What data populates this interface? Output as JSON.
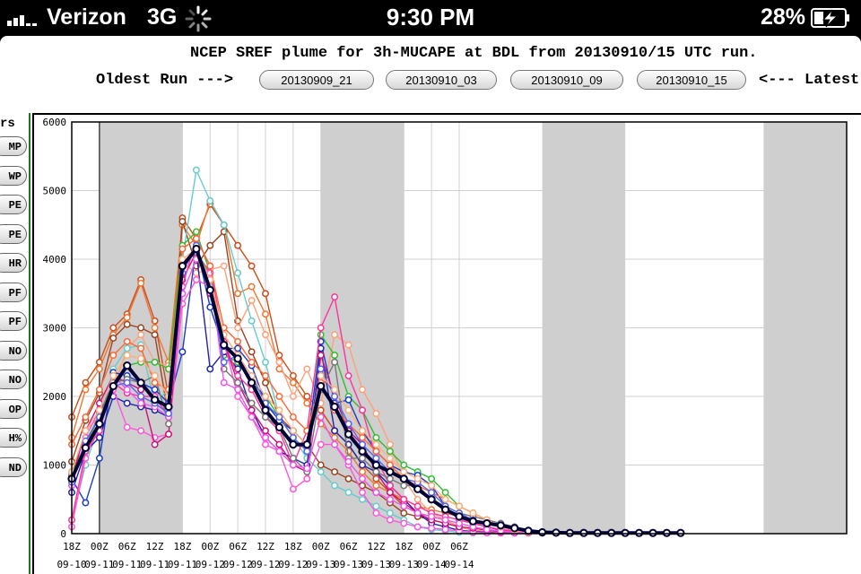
{
  "status_bar": {
    "carrier": "Verizon",
    "network": "3G",
    "time": "9:30 PM",
    "battery": "28%"
  },
  "header": {
    "title": "NCEP SREF plume for 3h-MUCAPE at BDL from 20130910/15 UTC run.",
    "oldest_label": "Oldest Run --->",
    "latest_label": "<--- Latest",
    "runs": [
      "20130909_21",
      "20130910_03",
      "20130910_09",
      "20130910_15"
    ]
  },
  "sidebar": {
    "header": "rs",
    "buttons": [
      "MP",
      "WP",
      "PE",
      "PE",
      "HR",
      "PF",
      "PF",
      "NO",
      "NO",
      "OP",
      "H%",
      "ND"
    ]
  },
  "chart_data": {
    "type": "line",
    "title": "NCEP SREF plume for 3h-MUCAPE at BDL from 20130910/15 UTC run.",
    "xlabel": "",
    "ylabel": "",
    "ylim": [
      0,
      6000
    ],
    "yticks": [
      0,
      1000,
      2000,
      3000,
      4000,
      5000,
      6000
    ],
    "x_tick_labels": [
      {
        "hour": "18Z",
        "date": "09-10"
      },
      {
        "hour": "00Z",
        "date": "09-11"
      },
      {
        "hour": "06Z",
        "date": "09-11"
      },
      {
        "hour": "12Z",
        "date": "09-11"
      },
      {
        "hour": "18Z",
        "date": "09-11"
      },
      {
        "hour": "00Z",
        "date": "09-12"
      },
      {
        "hour": "06Z",
        "date": "09-12"
      },
      {
        "hour": "12Z",
        "date": "09-12"
      },
      {
        "hour": "18Z",
        "date": "09-12"
      },
      {
        "hour": "00Z",
        "date": "09-13"
      },
      {
        "hour": "06Z",
        "date": "09-13"
      },
      {
        "hour": "12Z",
        "date": "09-13"
      },
      {
        "hour": "18Z",
        "date": "09-13"
      },
      {
        "hour": "00Z",
        "date": "09-14"
      },
      {
        "hour": "06Z",
        "date": "09-14"
      }
    ],
    "x_hours": [
      18,
      21,
      24,
      27,
      30,
      33,
      36,
      39,
      42,
      45,
      48,
      51,
      54,
      57,
      60,
      63,
      66,
      69,
      72,
      75,
      78,
      81,
      84,
      87,
      90,
      93,
      96,
      99,
      102,
      105,
      108,
      111,
      114,
      117,
      120,
      123,
      126,
      129,
      132,
      135,
      138,
      141,
      144,
      147,
      150
    ],
    "night_shading_hours": [
      [
        24,
        42
      ],
      [
        72,
        90
      ],
      [
        120,
        138
      ],
      [
        168,
        186
      ]
    ],
    "current_run_marker_hour": 24,
    "grid": true,
    "mean_color": "#000033",
    "series": [
      {
        "color": "#cc4d1a",
        "values": [
          1700,
          2200,
          2500,
          3000,
          3200,
          3700,
          3100,
          2000,
          4600,
          4300,
          4800,
          4500,
          4200,
          3900,
          3500,
          2600,
          2300,
          2000,
          1800,
          1500,
          1300,
          1000,
          800,
          600,
          400,
          300,
          250,
          200,
          100,
          50,
          30,
          20,
          10,
          10,
          10,
          10,
          10,
          10,
          10,
          10,
          10,
          10,
          10,
          10,
          10
        ]
      },
      {
        "color": "#ee7733",
        "values": [
          1400,
          2100,
          2400,
          2900,
          3150,
          3650,
          3000,
          2500,
          4500,
          4200,
          4850,
          4500,
          3500,
          3600,
          3200,
          2400,
          2200,
          1900,
          1600,
          1400,
          1200,
          900,
          700,
          600,
          500,
          400,
          350,
          300,
          250,
          150,
          100,
          60,
          40,
          20,
          10,
          10,
          10,
          10,
          10,
          10,
          10,
          10,
          10,
          10,
          10
        ]
      },
      {
        "color": "#9a4420",
        "values": [
          1050,
          1650,
          2050,
          2850,
          3050,
          3000,
          2900,
          1700,
          4550,
          3900,
          4200,
          4400,
          3100,
          2650,
          2200,
          1700,
          1500,
          1300,
          1000,
          900,
          800,
          700,
          600,
          450,
          300,
          250,
          200,
          150,
          100,
          50,
          30,
          20,
          10,
          10,
          10,
          10,
          10,
          10,
          10,
          10,
          10,
          10,
          10,
          10,
          10
        ]
      },
      {
        "color": "#ffa07a",
        "values": [
          850,
          1500,
          1700,
          2100,
          2700,
          2900,
          2500,
          2450,
          3950,
          3800,
          3850,
          3900,
          3000,
          3400,
          2900,
          2500,
          2000,
          2400,
          1900,
          2900,
          2750,
          2100,
          1750,
          1300,
          800,
          500,
          300,
          200,
          100,
          50,
          30,
          20,
          10,
          10,
          10,
          10,
          10,
          10,
          10,
          10,
          10,
          10,
          10,
          10,
          10
        ]
      },
      {
        "color": "#66cccc",
        "values": [
          200,
          1000,
          1600,
          2400,
          2700,
          2750,
          1900,
          2100,
          4000,
          5300,
          4850,
          4500,
          3800,
          3100,
          2500,
          1700,
          1400,
          1100,
          900,
          700,
          600,
          500,
          400,
          300,
          200,
          100,
          60,
          40,
          20,
          10,
          10,
          10,
          10,
          10,
          10,
          10,
          10,
          10,
          10,
          10,
          10,
          10,
          10,
          10,
          10
        ]
      },
      {
        "color": "#33bb33",
        "values": [
          900,
          1300,
          1700,
          2200,
          2450,
          2500,
          2500,
          2400,
          4200,
          4400,
          3800,
          2600,
          2500,
          2200,
          2000,
          1700,
          1400,
          1200,
          2900,
          2600,
          2000,
          1800,
          1400,
          1200,
          1000,
          900,
          800,
          600,
          400,
          300,
          200,
          100,
          50,
          20,
          10,
          10,
          10,
          10,
          10,
          10,
          10,
          10,
          10,
          10,
          10
        ]
      },
      {
        "color": "#1a3ccc",
        "values": [
          800,
          450,
          1100,
          2350,
          2300,
          2200,
          2100,
          1900,
          2650,
          4200,
          3300,
          2700,
          2700,
          2450,
          1900,
          1650,
          1500,
          1300,
          2800,
          1900,
          1950,
          1500,
          1200,
          1000,
          900,
          850,
          700,
          400,
          200,
          150,
          100,
          50,
          20,
          10,
          10,
          10,
          10,
          10,
          10,
          10,
          10,
          10,
          10,
          10,
          10
        ]
      },
      {
        "color": "#2222aa",
        "values": [
          600,
          1200,
          1400,
          2000,
          1900,
          1850,
          1800,
          1700,
          3900,
          4100,
          2400,
          2650,
          2400,
          1800,
          1400,
          1200,
          1100,
          1000,
          2700,
          1500,
          1300,
          1000,
          900,
          700,
          500,
          300,
          150,
          100,
          50,
          30,
          20,
          10,
          10,
          10,
          10,
          10,
          10,
          10,
          10,
          10,
          10,
          10,
          10,
          10,
          10
        ]
      },
      {
        "color": "#ff55dd",
        "values": [
          100,
          1100,
          1600,
          2100,
          1550,
          1500,
          1400,
          1450,
          3350,
          3700,
          3600,
          2800,
          2000,
          1700,
          1300,
          1200,
          650,
          800,
          1300,
          1300,
          1000,
          600,
          300,
          200,
          150,
          100,
          80,
          60,
          40,
          20,
          10,
          10,
          10,
          10,
          10,
          10,
          10,
          10,
          10,
          10,
          10,
          10,
          10,
          10,
          10
        ]
      },
      {
        "color": "#cc1177",
        "values": [
          800,
          1500,
          1900,
          2300,
          2200,
          2100,
          1300,
          1450,
          3700,
          4100,
          3500,
          2800,
          2200,
          1800,
          1500,
          1300,
          1000,
          900,
          2600,
          2000,
          1500,
          1300,
          900,
          600,
          450,
          300,
          200,
          150,
          100,
          80,
          50,
          30,
          20,
          10,
          10,
          10,
          10,
          10,
          10,
          10,
          10,
          10,
          10,
          10,
          10
        ]
      },
      {
        "color": "#ff3399",
        "values": [
          200,
          1200,
          1500,
          2200,
          2050,
          2000,
          2000,
          1700,
          3600,
          4300,
          3900,
          2800,
          2300,
          2100,
          1700,
          1500,
          1000,
          1500,
          3000,
          3450,
          2300,
          1800,
          1100,
          700,
          500,
          400,
          300,
          250,
          200,
          150,
          100,
          60,
          40,
          20,
          10,
          10,
          10,
          10,
          10,
          10,
          10,
          10,
          10,
          10,
          10
        ]
      },
      {
        "color": "#777777",
        "values": [
          850,
          1300,
          1750,
          2200,
          2250,
          2200,
          2300,
          1600,
          3900,
          4100,
          3800,
          2400,
          2200,
          1900,
          1700,
          1550,
          1100,
          900,
          2100,
          2500,
          1100,
          1100,
          900,
          800,
          700,
          700,
          500,
          400,
          300,
          250,
          200,
          150,
          100,
          50,
          20,
          10,
          10,
          10,
          10,
          10,
          10,
          10,
          10,
          10,
          10
        ]
      },
      {
        "color": "#ee55ee",
        "values": [
          700,
          1400,
          1800,
          2300,
          2100,
          1900,
          1850,
          1700,
          3500,
          4000,
          3800,
          2200,
          2100,
          1700,
          1400,
          1200,
          1000,
          950,
          1700,
          1300,
          1050,
          800,
          600,
          500,
          400,
          300,
          250,
          200,
          150,
          100,
          60,
          40,
          20,
          10,
          10,
          10,
          10,
          10,
          10,
          10,
          10,
          10,
          10,
          10,
          10
        ]
      },
      {
        "color": "#ff6633",
        "values": [
          1300,
          1700,
          2100,
          2600,
          2800,
          2700,
          2200,
          2100,
          4150,
          4300,
          3900,
          3000,
          2800,
          2500,
          2300,
          2000,
          1700,
          1500,
          2200,
          1800,
          1600,
          1400,
          1200,
          1000,
          800,
          700,
          600,
          500,
          400,
          300,
          200,
          100,
          50,
          20,
          10,
          10,
          10,
          10,
          10,
          10,
          10,
          10,
          10,
          10,
          10
        ]
      },
      {
        "color": "#5566ee",
        "values": [
          750,
          1350,
          1700,
          2150,
          2200,
          2000,
          1900,
          1750,
          3800,
          4200,
          3600,
          2500,
          2600,
          2300,
          1900,
          1700,
          1400,
          1200,
          2400,
          2000,
          1600,
          1300,
          1100,
          900,
          800,
          750,
          600,
          400,
          300,
          200,
          150,
          100,
          50,
          20,
          10,
          10,
          10,
          10,
          10,
          10,
          10,
          10,
          10,
          10,
          10
        ]
      },
      {
        "color": "#ffb07a",
        "values": [
          900,
          1500,
          1800,
          2300,
          2600,
          2550,
          2300,
          2000,
          4000,
          4150,
          3700,
          2900,
          2600,
          2300,
          2000,
          1800,
          1500,
          1300,
          2300,
          2100,
          1800,
          1500,
          1300,
          1100,
          900,
          800,
          700,
          500,
          400,
          300,
          200,
          100,
          50,
          20,
          10,
          10,
          10,
          10,
          10,
          10,
          10,
          10,
          10,
          10,
          10
        ]
      },
      {
        "color": "#000033",
        "values": [
          800,
          1250,
          1600,
          2150,
          2450,
          2200,
          1950,
          1850,
          3900,
          4150,
          3550,
          2750,
          2550,
          2200,
          1800,
          1550,
          1300,
          1300,
          2150,
          1850,
          1450,
          1200,
          1000,
          900,
          800,
          650,
          500,
          350,
          250,
          180,
          150,
          120,
          80,
          40,
          20,
          15,
          10,
          10,
          10,
          10,
          10,
          10,
          10,
          10,
          10
        ]
      }
    ]
  }
}
